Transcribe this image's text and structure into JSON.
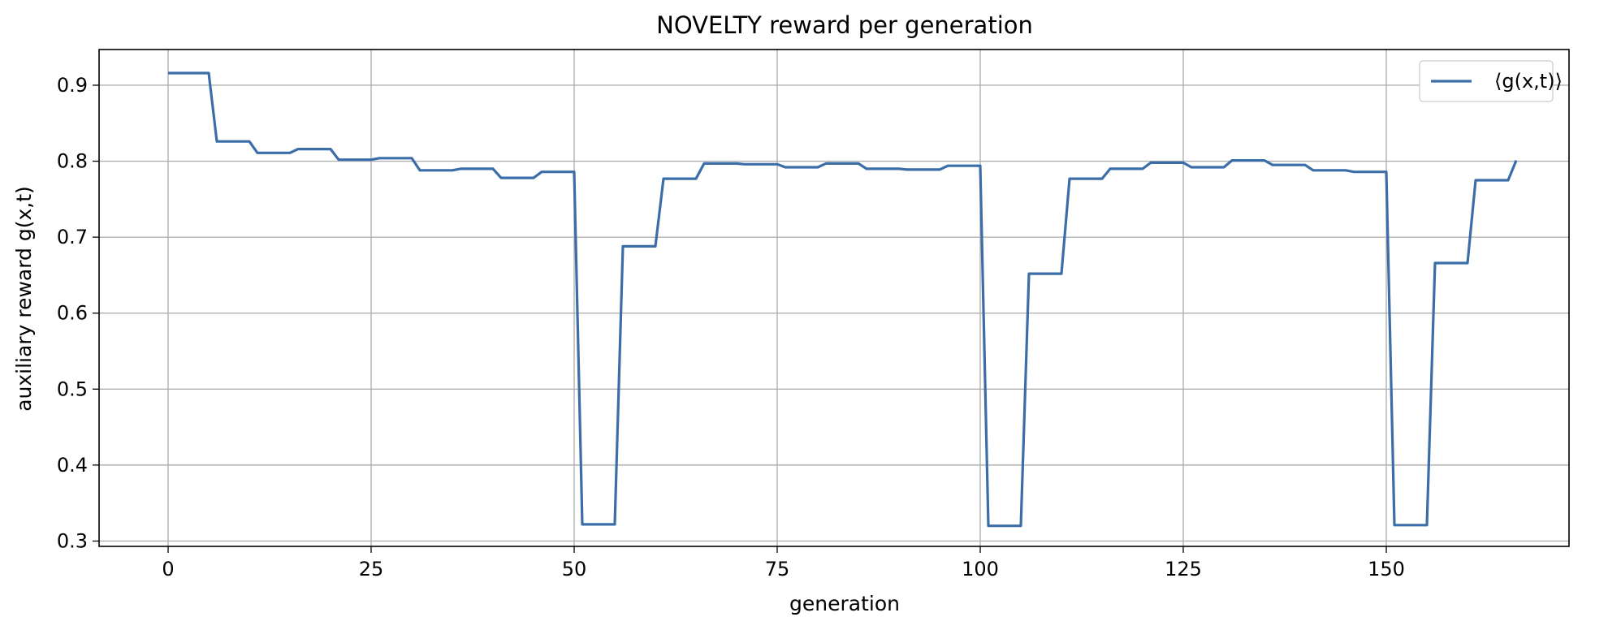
{
  "chart_data": {
    "type": "line",
    "title": "NOVELTY reward per generation",
    "xlabel": "generation",
    "ylabel": "auxiliary reward g(x,t)",
    "xlim": [
      -8.5,
      172.5
    ],
    "ylim": [
      0.293,
      0.947
    ],
    "xticks": [
      0,
      25,
      50,
      75,
      100,
      125,
      150
    ],
    "yticks": [
      0.3,
      0.4,
      0.5,
      0.6,
      0.7,
      0.8,
      0.9
    ],
    "grid": true,
    "legend_position": "top-right",
    "colors": {
      "series": "#3b6ea8"
    },
    "series": [
      {
        "name": "⟨g(x,t)⟩",
        "x": [
          0,
          5,
          6,
          10,
          11,
          15,
          16,
          20,
          21,
          25,
          26,
          30,
          31,
          35,
          36,
          40,
          41,
          45,
          46,
          50,
          51,
          55,
          56,
          60,
          61,
          65,
          66,
          70,
          71,
          75,
          76,
          80,
          81,
          85,
          86,
          90,
          91,
          95,
          96,
          100,
          101,
          105,
          106,
          110,
          111,
          115,
          116,
          120,
          121,
          125,
          126,
          130,
          131,
          135,
          136,
          140,
          141,
          145,
          146,
          150,
          151,
          155,
          156,
          160,
          161,
          165,
          166
        ],
        "y": [
          0.916,
          0.916,
          0.826,
          0.826,
          0.811,
          0.811,
          0.816,
          0.816,
          0.802,
          0.802,
          0.804,
          0.804,
          0.788,
          0.788,
          0.79,
          0.79,
          0.778,
          0.778,
          0.786,
          0.786,
          0.322,
          0.322,
          0.688,
          0.688,
          0.777,
          0.777,
          0.797,
          0.797,
          0.796,
          0.796,
          0.792,
          0.792,
          0.797,
          0.797,
          0.79,
          0.79,
          0.789,
          0.789,
          0.794,
          0.794,
          0.32,
          0.32,
          0.652,
          0.652,
          0.777,
          0.777,
          0.79,
          0.79,
          0.798,
          0.798,
          0.792,
          0.792,
          0.801,
          0.801,
          0.795,
          0.795,
          0.788,
          0.788,
          0.786,
          0.786,
          0.321,
          0.321,
          0.666,
          0.666,
          0.775,
          0.775,
          0.801
        ]
      }
    ]
  }
}
